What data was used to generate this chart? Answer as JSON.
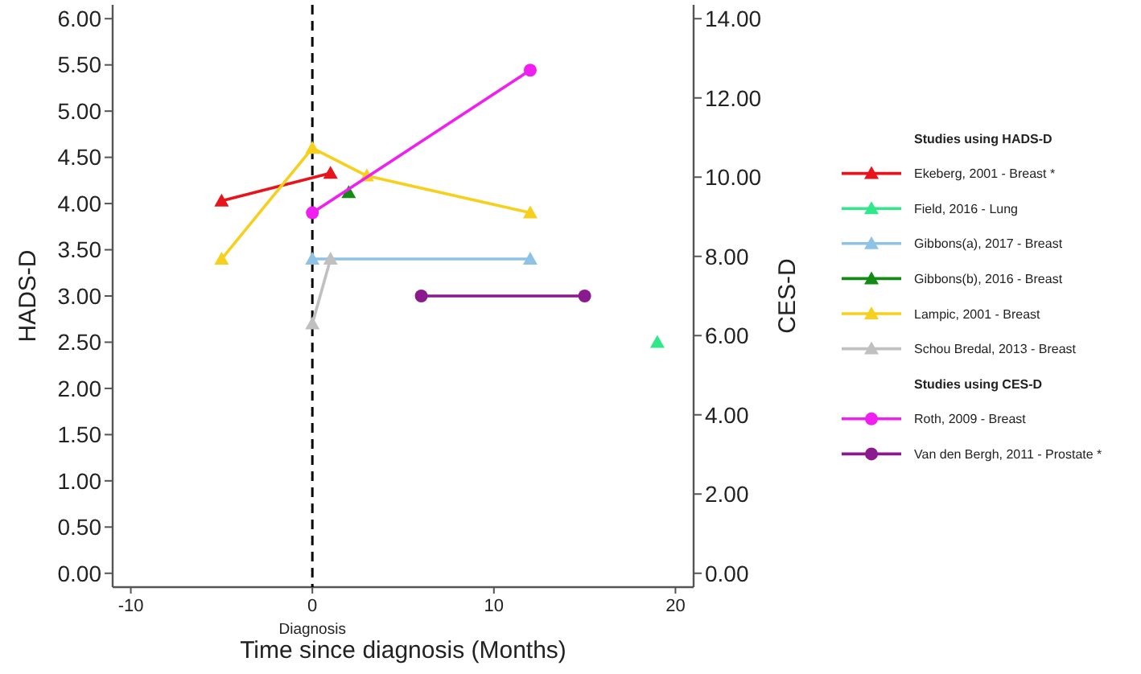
{
  "chart_data": {
    "type": "line",
    "xlabel": "Time since diagnosis (Months)",
    "ylabel": "HADS-D",
    "y2label": "CES-D",
    "xlim": [
      -11,
      21
    ],
    "xticks": [
      -10,
      0,
      10,
      20
    ],
    "ylim": [
      -0.15,
      6.15
    ],
    "yticks": [
      {
        "value": 0,
        "label": "0.00"
      },
      {
        "value": 0.5,
        "label": "0.50"
      },
      {
        "value": 1,
        "label": "1.00"
      },
      {
        "value": 1.5,
        "label": "1.50"
      },
      {
        "value": 2,
        "label": "2.00"
      },
      {
        "value": 2.5,
        "label": "2.50"
      },
      {
        "value": 3,
        "label": "3.00"
      },
      {
        "value": 3.5,
        "label": "3.50"
      },
      {
        "value": 4,
        "label": "4.00"
      },
      {
        "value": 4.5,
        "label": "4.50"
      },
      {
        "value": 5,
        "label": "5.00"
      },
      {
        "value": 5.5,
        "label": "5.50"
      },
      {
        "value": 6,
        "label": "6.00"
      }
    ],
    "y2lim": [
      -0.35,
      14.35
    ],
    "y2ticks": [
      {
        "value": 0,
        "label": "0.00"
      },
      {
        "value": 2,
        "label": "2.00"
      },
      {
        "value": 4,
        "label": "4.00"
      },
      {
        "value": 6,
        "label": "6.00"
      },
      {
        "value": 8,
        "label": "8.00"
      },
      {
        "value": 10,
        "label": "10.00"
      },
      {
        "value": 12,
        "label": "12.00"
      },
      {
        "value": 14,
        "label": "14.00"
      }
    ],
    "legend": "right",
    "grid": false,
    "annotations": [
      "Studies using HADS-D",
      "Studies using CES-D"
    ],
    "ref_lines": [
      {
        "axis": "x",
        "value": 0,
        "label": "Diagnosis",
        "color": "#000000",
        "line_style": "dashed"
      }
    ],
    "series": [
      {
        "name": "Ekeberg, 2001 - Breast *",
        "color": "#e8141c",
        "marker": "triangle",
        "x": [
          -5,
          1
        ],
        "values": [
          4.03,
          4.33
        ]
      },
      {
        "name": "Field, 2016 - Lung",
        "color": "#2ee88a",
        "marker": "triangle",
        "x": [
          19
        ],
        "values": [
          2.5
        ]
      },
      {
        "name": "Gibbons(a), 2017 - Breast",
        "color": "#8ec3e6",
        "marker": "triangle",
        "x": [
          0,
          12
        ],
        "values": [
          3.4,
          3.4
        ]
      },
      {
        "name": "Gibbons(b), 2016 - Breast",
        "color": "#138a13",
        "marker": "triangle",
        "x": [
          2
        ],
        "values": [
          4.12
        ]
      },
      {
        "name": "Lampic, 2001 - Breast",
        "color": "#f7cf1d",
        "marker": "triangle",
        "x": [
          -5,
          0,
          3,
          12
        ],
        "values": [
          3.4,
          4.6,
          4.3,
          3.9
        ]
      },
      {
        "name": "Schou Bredal, 2013 - Breast",
        "color": "#c0c0c0",
        "marker": "triangle",
        "x": [
          0,
          1
        ],
        "values": [
          2.7,
          3.4
        ]
      },
      {
        "name": "Roth, 2009 - Breast",
        "color": "#f01ef0",
        "marker": "circle",
        "axis": "y2",
        "x": [
          0,
          12
        ],
        "values": [
          9.1,
          12.7
        ]
      },
      {
        "name": "Van den Bergh, 2011 - Prostate *",
        "color": "#8a1a8e",
        "marker": "circle",
        "axis": "y2",
        "x": [
          6,
          15
        ],
        "values": [
          7,
          7
        ]
      }
    ]
  }
}
